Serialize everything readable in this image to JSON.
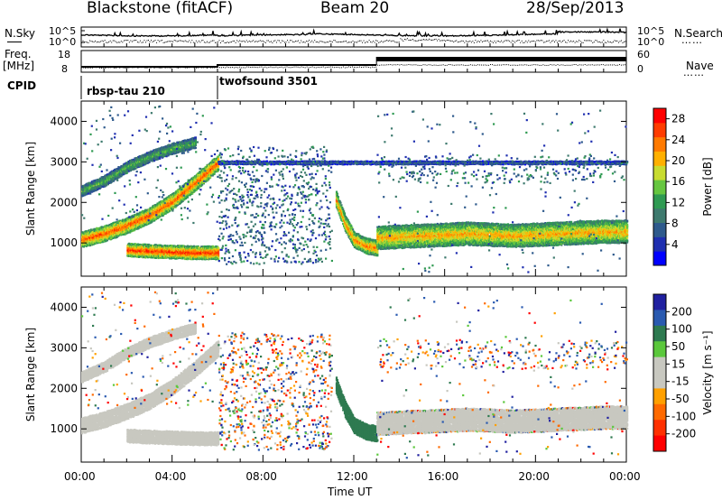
{
  "header": {
    "station": "Blackstone (fitACF)",
    "beam": "Beam 20",
    "date": "28/Sep/2013"
  },
  "left_labels": {
    "nsky": "N.Sky",
    "freq": "Freq.",
    "freq_unit": "[MHz]",
    "cpid": "CPID"
  },
  "right_labels": {
    "nsearch": "N.Search",
    "nave": "Nave",
    "nsearch_dots": "……",
    "nave_dots": "……"
  },
  "noise_ticks": {
    "left_top": "10^5",
    "left_bot": "10^0",
    "right_top": "10^5",
    "right_bot": "10^0"
  },
  "freq_ticks": {
    "left_top": "18",
    "left_bot": "8",
    "right_top": "60",
    "right_bot": "0"
  },
  "cpid_segments": [
    {
      "label": "rbsp-tau 210",
      "start": "00:00",
      "end": "06:00"
    },
    {
      "label": "twofsound 3501",
      "start": "06:00",
      "end": "24:00"
    }
  ],
  "x_axis": {
    "label": "Time UT",
    "ticks": [
      "00:00",
      "04:00",
      "08:00",
      "12:00",
      "16:00",
      "20:00",
      "00:00"
    ]
  },
  "colors": {
    "power": [
      "#0000ff",
      "#1f2fb0",
      "#2e5a8c",
      "#3e7a6e",
      "#2f9a52",
      "#66c640",
      "#c8dc30",
      "#ffb000",
      "#ff7a00",
      "#ff3c00",
      "#ff0000"
    ],
    "velocity": [
      "#2020a0",
      "#2a5ab0",
      "#2e7a50",
      "#5bc83c",
      "#c8c8c0",
      "#c8c8c0",
      "#ffa000",
      "#ff6a00",
      "#ff3000",
      "#ff0000"
    ],
    "ground_scatter": "#c8c8c0"
  },
  "chart_data": [
    {
      "type": "heatmap",
      "title": "Power",
      "xlabel": "Time UT",
      "ylabel": "Slant Range [km]",
      "xlim": [
        0,
        24
      ],
      "ylim": [
        180,
        4500
      ],
      "y_ticks": [
        "1000",
        "2000",
        "3000",
        "4000"
      ],
      "colorbar": {
        "label": "Power [dB]",
        "ticks": [
          "4",
          "8",
          "12",
          "16",
          "20",
          "24",
          "28"
        ],
        "range": [
          0,
          30
        ]
      },
      "bands": [
        {
          "name": "main",
          "t": [
            0,
            1,
            2,
            3,
            4,
            5,
            6
          ],
          "r": [
            1100,
            1250,
            1450,
            1700,
            2050,
            2500,
            3000
          ],
          "power": 26,
          "width": 180
        },
        {
          "name": "upper",
          "t": [
            0,
            1,
            2,
            3,
            4,
            5
          ],
          "r": [
            2300,
            2550,
            2900,
            3150,
            3350,
            3500
          ],
          "power": 14,
          "width": 120
        },
        {
          "name": "low-enh",
          "t": [
            2,
            3,
            4,
            5,
            6
          ],
          "r": [
            850,
            820,
            800,
            780,
            780
          ],
          "power": 28,
          "width": 140
        },
        {
          "name": "descent",
          "t": [
            11.2,
            11.6,
            12.0,
            12.5,
            13.0
          ],
          "r": [
            2100,
            1500,
            1100,
            950,
            900
          ],
          "power": 24,
          "width": 180
        },
        {
          "name": "flat",
          "t": [
            13,
            15,
            17,
            19,
            21,
            23,
            24
          ],
          "r": [
            1150,
            1200,
            1250,
            1200,
            1250,
            1300,
            1300
          ],
          "power": 22,
          "width": 260
        },
        {
          "name": "3000-line",
          "t": [
            6,
            10,
            13,
            24
          ],
          "r": [
            3000,
            3000,
            3000,
            3000
          ],
          "power": 8,
          "width": 40
        }
      ]
    },
    {
      "type": "heatmap",
      "title": "Velocity",
      "xlabel": "Time UT",
      "ylabel": "Slant Range [km]",
      "xlim": [
        0,
        24
      ],
      "ylim": [
        180,
        4500
      ],
      "y_ticks": [
        "1000",
        "2000",
        "3000",
        "4000"
      ],
      "colorbar": {
        "label": "Velocity [m s⁻¹]",
        "ticks": [
          "200",
          "100",
          "50",
          "15",
          "-15",
          "-50",
          "-100",
          "-200"
        ],
        "range": [
          -250,
          250
        ]
      },
      "bands": [
        {
          "name": "main-gs",
          "t": [
            0,
            1,
            2,
            3,
            4,
            5,
            6
          ],
          "r": [
            1100,
            1250,
            1450,
            1700,
            2050,
            2500,
            3000
          ],
          "vel": 0,
          "width": 180
        },
        {
          "name": "upper-gs",
          "t": [
            0,
            1,
            2,
            3,
            4,
            5
          ],
          "r": [
            2300,
            2550,
            2900,
            3150,
            3350,
            3500
          ],
          "vel": 0,
          "width": 120
        },
        {
          "name": "low-gs",
          "t": [
            2,
            3,
            4,
            5,
            6
          ],
          "r": [
            850,
            820,
            800,
            780,
            780
          ],
          "vel": 0,
          "width": 140
        },
        {
          "name": "descent",
          "t": [
            11.2,
            11.6,
            12.0,
            12.5,
            13.0
          ],
          "r": [
            2100,
            1500,
            1100,
            950,
            900
          ],
          "vel": 60,
          "width": 180
        },
        {
          "name": "flat-gs",
          "t": [
            13,
            15,
            17,
            19,
            21,
            23,
            24
          ],
          "r": [
            1150,
            1200,
            1250,
            1200,
            1250,
            1300,
            1300
          ],
          "vel": 0,
          "width": 260
        }
      ]
    }
  ]
}
